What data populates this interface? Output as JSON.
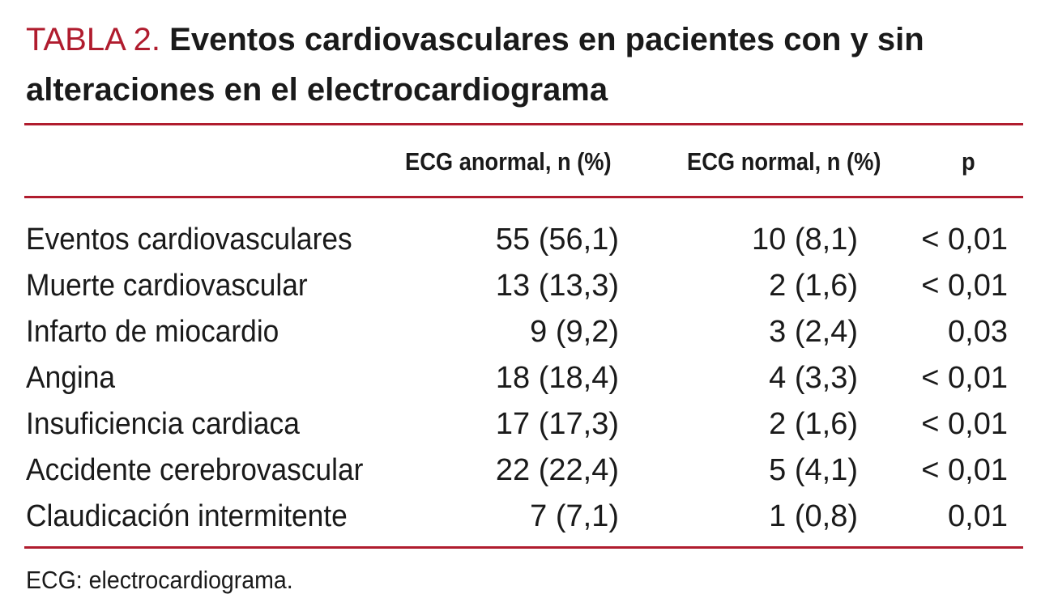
{
  "table": {
    "label": "TABLA 2.",
    "title_line": "Eventos cardiovasculares en pacientes con y sin alteraciones en el electrocardiograma",
    "columns": {
      "abnormal": "ECG anormal, n (%)",
      "normal": "ECG normal, n (%)",
      "p": "p"
    },
    "rows": [
      {
        "name": "Eventos cardiovasculares",
        "abnormal": "55 (56,1)",
        "normal": "10 (8,1)",
        "p": "< 0,01"
      },
      {
        "name": "Muerte cardiovascular",
        "abnormal": "13 (13,3)",
        "normal": "2 (1,6)",
        "p": "< 0,01"
      },
      {
        "name": "Infarto de miocardio",
        "abnormal": "9 (9,2)",
        "normal": "3 (2,4)",
        "p": "0,03"
      },
      {
        "name": "Angina",
        "abnormal": "18 (18,4)",
        "normal": "4 (3,3)",
        "p": "< 0,01"
      },
      {
        "name": "Insuficiencia cardiaca",
        "abnormal": "17 (17,3)",
        "normal": "2 (1,6)",
        "p": "< 0,01"
      },
      {
        "name": "Accidente cerebrovascular",
        "abnormal": "22 (22,4)",
        "normal": "5 (4,1)",
        "p": "< 0,01"
      },
      {
        "name": "Claudicación intermitente",
        "abnormal": "7 (7,1)",
        "normal": "1 (0,8)",
        "p": "0,01"
      }
    ],
    "footnote": "ECG: electrocardiograma."
  },
  "colors": {
    "accent": "#b01c2e",
    "text": "#1a1a1a"
  }
}
